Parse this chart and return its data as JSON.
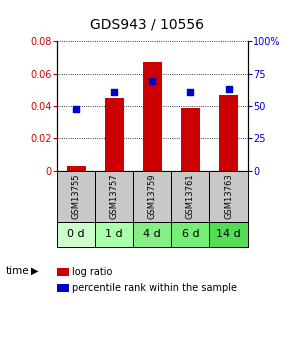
{
  "title": "GDS943 / 10556",
  "samples": [
    "GSM13755",
    "GSM13757",
    "GSM13759",
    "GSM13761",
    "GSM13763"
  ],
  "time_labels": [
    "0 d",
    "1 d",
    "4 d",
    "6 d",
    "14 d"
  ],
  "time_colors": [
    "#ccffcc",
    "#aaffaa",
    "#88ee88",
    "#77ee77",
    "#55dd55"
  ],
  "log_ratio": [
    0.003,
    0.045,
    0.067,
    0.039,
    0.047
  ],
  "percentile": [
    48,
    61,
    69,
    61,
    63
  ],
  "bar_color": "#cc0000",
  "dot_color": "#0000cc",
  "ylim_left": [
    0,
    0.08
  ],
  "ylim_right": [
    0,
    100
  ],
  "yticks_left": [
    0,
    0.02,
    0.04,
    0.06,
    0.08
  ],
  "ytick_labels_left": [
    "0",
    "0.02",
    "0.04",
    "0.06",
    "0.08"
  ],
  "yticks_right": [
    0,
    25,
    50,
    75,
    100
  ],
  "ytick_labels_right": [
    "0",
    "25",
    "50",
    "75",
    "100%"
  ],
  "sample_bg": "#c8c8c8",
  "bar_width": 0.5,
  "legend_log_ratio": "log ratio",
  "legend_percentile": "percentile rank within the sample",
  "tick_fontsize": 7,
  "title_fontsize": 10,
  "sample_fontsize": 6,
  "time_fontsize": 8,
  "legend_fontsize": 7
}
